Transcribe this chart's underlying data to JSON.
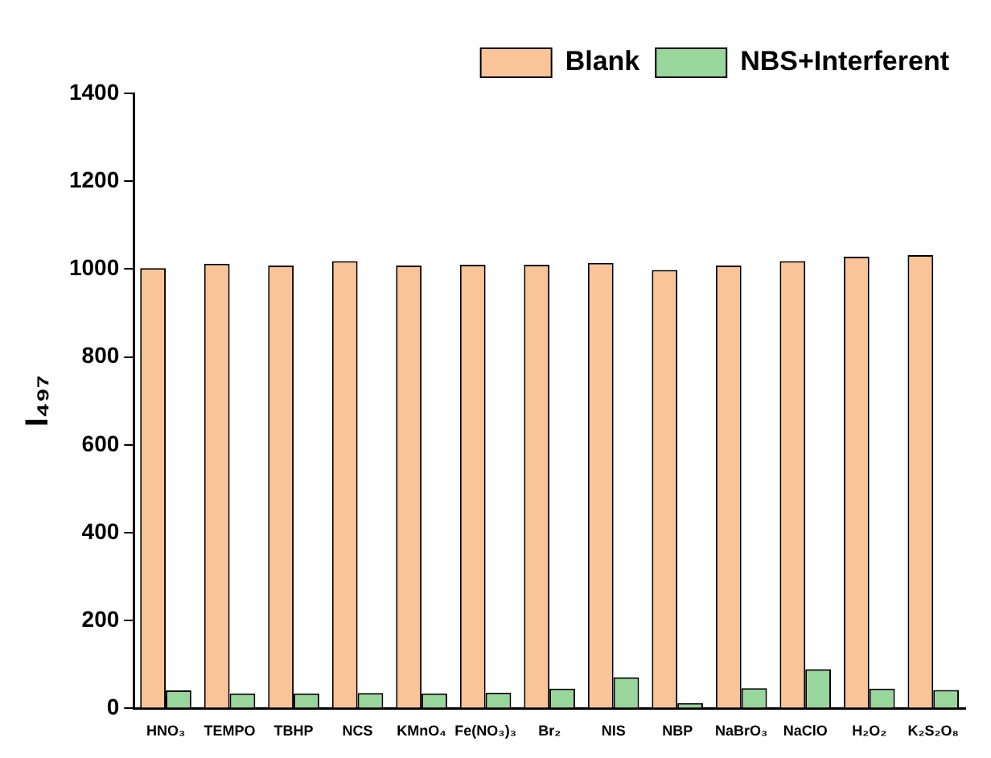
{
  "chart_data": {
    "type": "bar",
    "ylabel": "I₄₉₇",
    "categories": [
      "HNO₃",
      "TEMPO",
      "TBHP",
      "NCS",
      "KMnO₄",
      "Fe(NO₃)₃",
      "Br₂",
      "NIS",
      "NBP",
      "NaBrO₃",
      "NaClO",
      "H₂O₂",
      "K₂S₂O₈"
    ],
    "series": [
      {
        "name": "Blank",
        "color": "#f9c497",
        "values": [
          1002,
          1012,
          1008,
          1018,
          1008,
          1010,
          1010,
          1014,
          998,
          1008,
          1018,
          1028,
          1032
        ]
      },
      {
        "name": "NBS+Interferent",
        "color": "#98d69b",
        "values": [
          41,
          34,
          34,
          35,
          34,
          36,
          45,
          71,
          12,
          46,
          89,
          45,
          42
        ]
      }
    ],
    "ylim": [
      0,
      1400
    ],
    "yticks": [
      0,
      200,
      400,
      600,
      800,
      1000,
      1200,
      1400
    ],
    "grid": false,
    "legend": "top right"
  }
}
